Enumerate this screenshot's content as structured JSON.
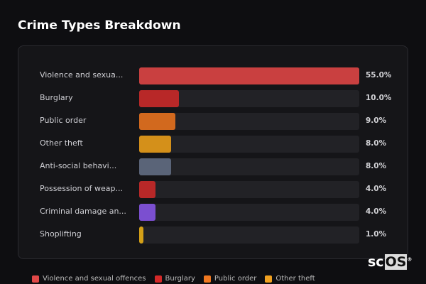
{
  "title": "Crime Types Breakdown",
  "chart_data": {
    "type": "bar",
    "orientation": "horizontal",
    "categories": [
      "Violence and sexua...",
      "Burglary",
      "Public order",
      "Other theft",
      "Anti-social behavi...",
      "Possession of weap...",
      "Criminal damage an...",
      "Shoplifting"
    ],
    "values": [
      55.0,
      10.0,
      9.0,
      8.0,
      8.0,
      4.0,
      4.0,
      1.0
    ],
    "value_labels": [
      "55.0%",
      "10.0%",
      "9.0%",
      "8.0%",
      "8.0%",
      "4.0%",
      "4.0%",
      "1.0%"
    ],
    "colors": [
      "#c94040",
      "#b82828",
      "#d2691e",
      "#d4901a",
      "#5a6478",
      "#b82828",
      "#7b4fd0",
      "#d4a017"
    ],
    "xlim": [
      0,
      55
    ]
  },
  "legend": [
    {
      "label": "Violence and sexual offences",
      "color": "#e04848"
    },
    {
      "label": "Burglary",
      "color": "#d42828"
    },
    {
      "label": "Public order",
      "color": "#f07820"
    },
    {
      "label": "Other theft",
      "color": "#f0a020"
    }
  ],
  "logo": {
    "text_a": "sc",
    "text_b": "OS",
    "mark": "®"
  }
}
